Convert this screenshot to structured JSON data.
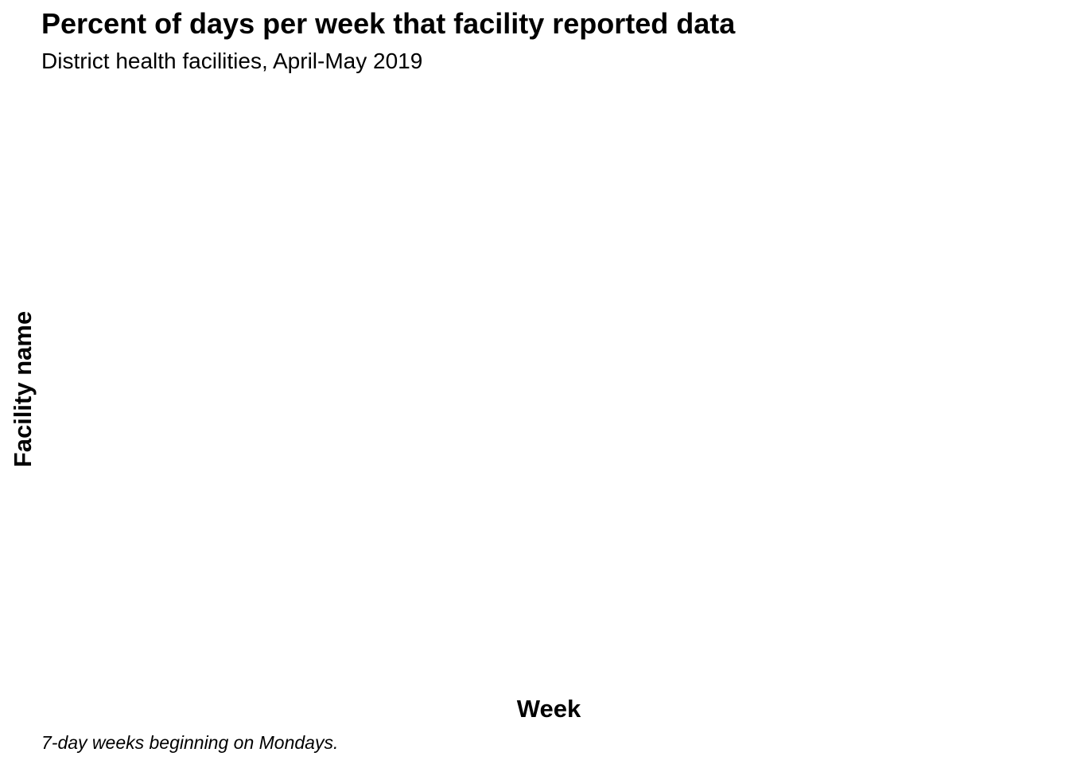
{
  "chart_data": {
    "type": "heatmap",
    "title": "Percent of days per week that facility reported data",
    "subtitle": "District health facilities, April-May 2019",
    "xlabel": "Week",
    "ylabel": "Facility name",
    "caption": "7-day weeks beginning on Mondays.",
    "categories": [],
    "series": [],
    "grid": false,
    "legend": "none"
  }
}
